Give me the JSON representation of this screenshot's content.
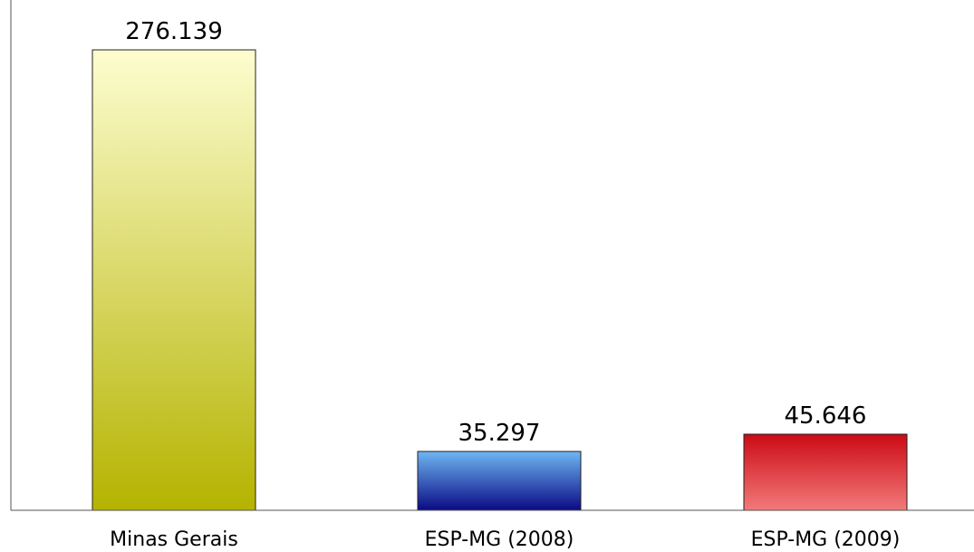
{
  "chart_data": {
    "type": "bar",
    "categories": [
      "Minas Gerais",
      "ESP-MG (2008)",
      "ESP-MG (2009)"
    ],
    "values": [
      276.139,
      35.297,
      45.646
    ],
    "value_labels": [
      "276.139",
      "35.297",
      "45.646"
    ],
    "title": "",
    "xlabel": "",
    "ylabel": "",
    "ylim": [
      0,
      276.139
    ],
    "grid": false,
    "legend": "none",
    "bar_gradients": [
      {
        "top": "#fdfdd0",
        "bottom": "#b5b300"
      },
      {
        "top": "#6fb6f2",
        "bottom": "#0a0a85"
      },
      {
        "top": "#cc0a14",
        "bottom": "#f27a7a"
      }
    ]
  }
}
